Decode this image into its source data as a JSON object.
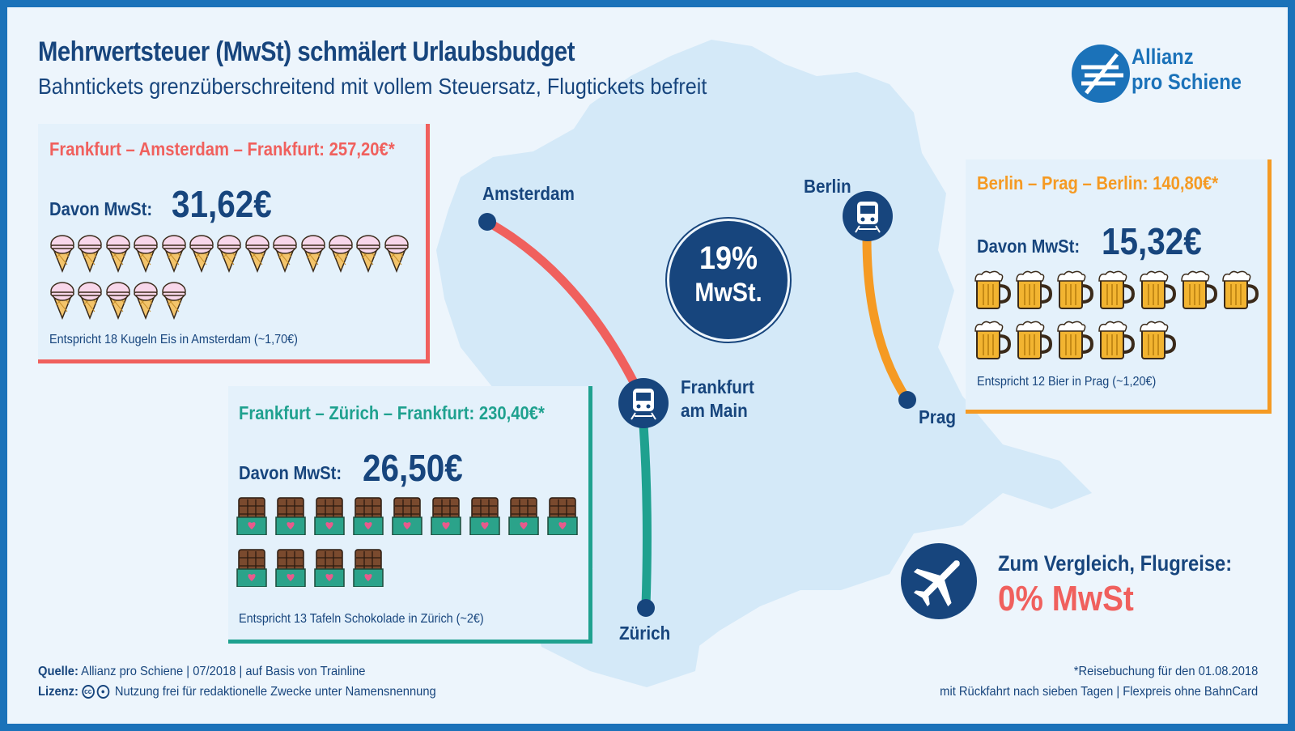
{
  "header": {
    "title": "Mehrwertsteuer (MwSt) schmälert Urlaubsbudget",
    "subtitle": "Bahntickets grenzüberschreitend mit vollem Steuersatz, Flugtickets befreit"
  },
  "logo": {
    "line1": "Allianz",
    "line2": "pro Schiene"
  },
  "cards": {
    "amsterdam": {
      "title": "Frankfurt – Amsterdam – Frankfurt: 257,20€*",
      "davon": "Davon MwSt:",
      "amount": "31,62€",
      "icon": "ice-cream-icon",
      "count": 18,
      "note": "Entspricht 18 Kugeln Eis in Amsterdam (~1,70€)",
      "color": "#f0605d"
    },
    "zurich": {
      "title": "Frankfurt – Zürich – Frankfurt: 230,40€*",
      "davon": "Davon MwSt:",
      "amount": "26,50€",
      "icon": "chocolate-bar-icon",
      "count": 13,
      "note": "Entspricht 13 Tafeln Schokolade in Zürich (~2€)",
      "color": "#1fa18f"
    },
    "prag": {
      "title": "Berlin – Prag – Berlin: 140,80€*",
      "davon": "Davon MwSt:",
      "amount": "15,32€",
      "icon": "beer-mug-icon",
      "count": 12,
      "note": "Entspricht 12 Bier in Prag (~1,20€)",
      "color": "#f59a23"
    }
  },
  "cities": {
    "amsterdam": "Amsterdam",
    "berlin": "Berlin",
    "frankfurt_line1": "Frankfurt",
    "frankfurt_line2": "am Main",
    "prag": "Prag",
    "zurich": "Zürich"
  },
  "badge": {
    "pct": "19%",
    "label": "MwSt."
  },
  "comparison": {
    "label": "Zum Vergleich, Flugreise:",
    "value": "0% MwSt",
    "icon": "airplane-icon"
  },
  "footer": {
    "source_label": "Quelle:",
    "source_text": "Allianz pro Schiene | 07/2018 | auf Basis von Trainline",
    "license_label": "Lizenz:",
    "license_text": "Nutzung frei für redaktionelle Zwecke unter Namensnennung",
    "license_cc": "cc",
    "note_line1": "*Reisebuchung für den 01.08.2018",
    "note_line2": "mit Rückfahrt nach sieben Tagen | Flexpreis ohne BahnCard"
  },
  "colors": {
    "navy": "#17457d",
    "blue": "#1b72b9",
    "red": "#f0605d",
    "teal": "#1fa18f",
    "orange": "#f59a23",
    "map": "#d6eaf8"
  }
}
